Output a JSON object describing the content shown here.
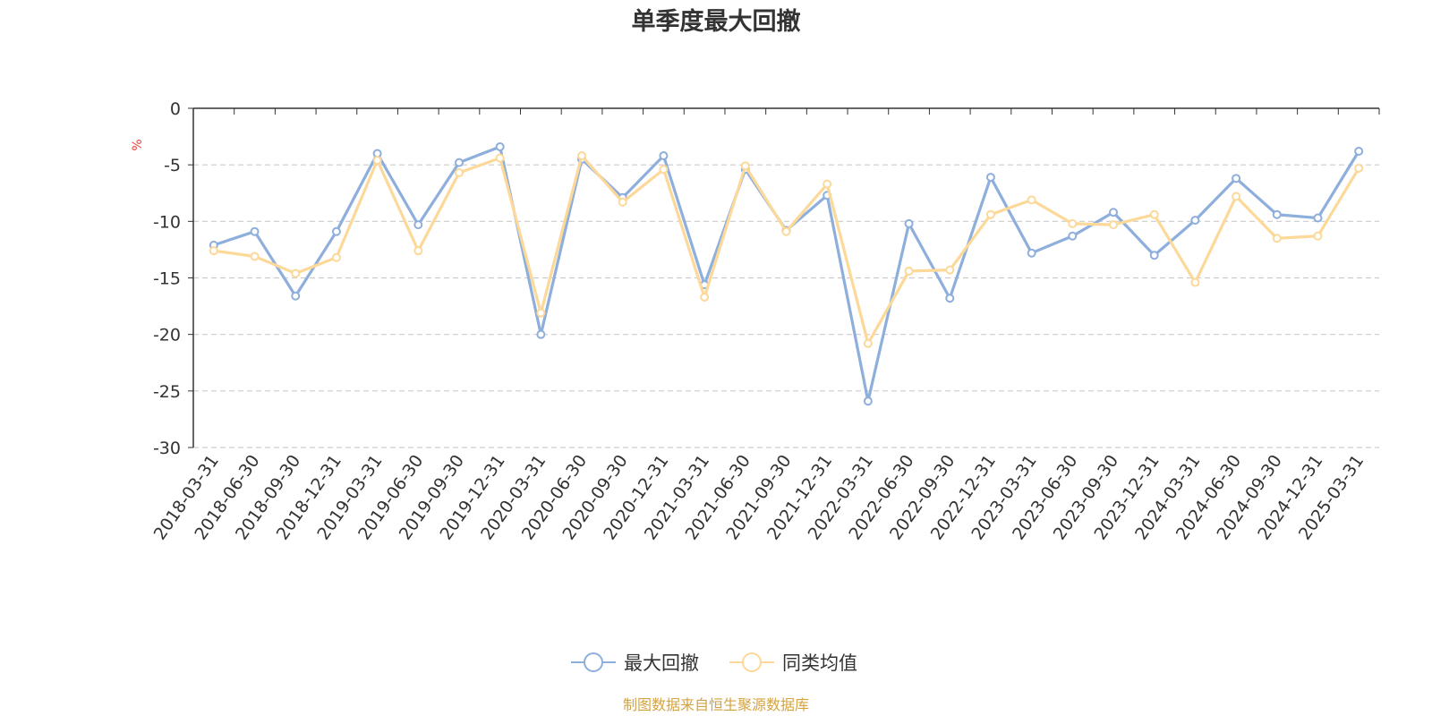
{
  "chart_data": {
    "type": "line",
    "title": "单季度最大回撤",
    "ylabel": "%",
    "xlabel": "",
    "ylim": [
      -30,
      0
    ],
    "yticks": [
      0,
      -5,
      -10,
      -15,
      -20,
      -25,
      -30
    ],
    "grid": true,
    "legend_position": "bottom-center",
    "categories": [
      "2018-03-31",
      "2018-06-30",
      "2018-09-30",
      "2018-12-31",
      "2019-03-31",
      "2019-06-30",
      "2019-09-30",
      "2019-12-31",
      "2020-03-31",
      "2020-06-30",
      "2020-09-30",
      "2020-12-31",
      "2021-03-31",
      "2021-06-30",
      "2021-09-30",
      "2021-12-31",
      "2022-03-31",
      "2022-06-30",
      "2022-09-30",
      "2022-12-31",
      "2023-03-31",
      "2023-06-30",
      "2023-09-30",
      "2023-12-31",
      "2024-03-31",
      "2024-06-30",
      "2024-09-30",
      "2024-12-31",
      "2025-03-31"
    ],
    "series": [
      {
        "name": "最大回撤",
        "color": "#8eaedc",
        "values": [
          -12.1,
          -10.9,
          -16.6,
          -10.9,
          -4.0,
          -10.3,
          -4.8,
          -3.4,
          -20.0,
          -4.5,
          -7.9,
          -4.2,
          -15.6,
          -5.4,
          -10.8,
          -7.7,
          -25.9,
          -10.2,
          -16.8,
          -6.1,
          -12.8,
          -11.3,
          -9.2,
          -13.0,
          -9.9,
          -6.2,
          -9.4,
          -9.7,
          -3.8
        ]
      },
      {
        "name": "同类均值",
        "color": "#fcd899",
        "values": [
          -12.6,
          -13.1,
          -14.6,
          -13.2,
          -4.6,
          -12.6,
          -5.7,
          -4.4,
          -18.1,
          -4.2,
          -8.3,
          -5.4,
          -16.7,
          -5.1,
          -10.9,
          -6.7,
          -20.8,
          -14.4,
          -14.3,
          -9.4,
          -8.1,
          -10.2,
          -10.3,
          -9.4,
          -15.4,
          -7.8,
          -11.5,
          -11.3,
          -5.3
        ]
      }
    ]
  },
  "source_note": "制图数据来自恒生聚源数据库",
  "colors": {
    "axis": "#333333",
    "grid": "#cccccc",
    "unit": "#e8413c",
    "source": "#d4a341"
  }
}
